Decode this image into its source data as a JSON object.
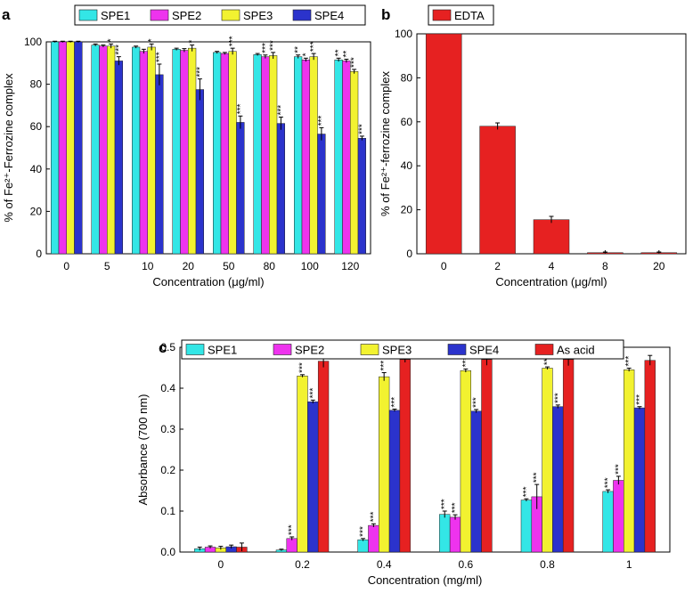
{
  "colors": {
    "SPE1": "#33e6e6",
    "SPE2": "#ee33ee",
    "SPE3": "#f2f230",
    "SPE4": "#2b33cc",
    "As acid": "#e62121",
    "EDTA": "#e62121"
  },
  "chart_data": [
    {
      "panel": "a",
      "type": "bar",
      "title": "",
      "xlabel": "Concentration (μg/ml)",
      "ylabel": "% of Fe²⁺-Ferrozine complex",
      "ylim": [
        0,
        100
      ],
      "yticks": [
        0,
        20,
        40,
        60,
        80,
        100
      ],
      "categories": [
        "0",
        "5",
        "10",
        "20",
        "50",
        "80",
        "100",
        "120"
      ],
      "legend": [
        "SPE1",
        "SPE2",
        "SPE3",
        "SPE4"
      ],
      "legend_position": "top",
      "series": [
        {
          "name": "SPE1",
          "values": [
            100,
            98.5,
            97.5,
            96.5,
            95,
            94,
            93,
            91.5
          ],
          "errors": [
            0.3,
            0.5,
            0.5,
            0.5,
            0.5,
            0.5,
            0.8,
            0.8
          ],
          "sig": [
            "",
            "",
            "",
            "",
            "",
            "",
            "**",
            "**"
          ]
        },
        {
          "name": "SPE2",
          "values": [
            100,
            98,
            95.5,
            96,
            94.5,
            93,
            91.5,
            91
          ],
          "errors": [
            0.3,
            0.5,
            1,
            0.8,
            0.5,
            0.8,
            0.8,
            0.8
          ],
          "sig": [
            "",
            "",
            "",
            "",
            "",
            "***",
            "*",
            "**"
          ]
        },
        {
          "name": "SPE3",
          "values": [
            100,
            98,
            97.5,
            97,
            95.5,
            93.5,
            93,
            86
          ],
          "errors": [
            0.3,
            1,
            1.5,
            1.5,
            1.5,
            1.5,
            1.5,
            1
          ],
          "sig": [
            "",
            "*",
            "*",
            "*",
            "***",
            "***",
            "***",
            "***"
          ]
        },
        {
          "name": "SPE4",
          "values": [
            100,
            91,
            84.5,
            77.5,
            62,
            61.5,
            56.5,
            54.5
          ],
          "errors": [
            0.3,
            2,
            5,
            5,
            3,
            3,
            3,
            1
          ],
          "sig": [
            "",
            "***",
            "***",
            "***",
            "***",
            "***",
            "***",
            "***"
          ]
        }
      ]
    },
    {
      "panel": "b",
      "type": "bar",
      "title": "",
      "xlabel": "Concentration (μg/ml)",
      "ylabel": "% of Fe²⁺-ferrozine complex",
      "ylim": [
        0,
        100
      ],
      "yticks": [
        0,
        20,
        40,
        60,
        80,
        100
      ],
      "categories": [
        "0",
        "2",
        "4",
        "8",
        "20"
      ],
      "legend": [
        "EDTA"
      ],
      "legend_position": "top-left",
      "series": [
        {
          "name": "EDTA",
          "values": [
            100,
            58,
            15.5,
            0.5,
            0.5
          ],
          "errors": [
            0,
            1.5,
            1.5,
            0.3,
            0.3
          ]
        }
      ]
    },
    {
      "panel": "c",
      "type": "bar",
      "title": "",
      "xlabel": "Concentration (mg/ml)",
      "ylabel": "Absorbance (700 nm)",
      "ylim": [
        0,
        0.5
      ],
      "yticks": [
        0,
        0.1,
        0.2,
        0.3,
        0.4,
        0.5
      ],
      "categories": [
        "0",
        "0.2",
        "0.4",
        "0.6",
        "0.8",
        "1"
      ],
      "legend": [
        "SPE1",
        "SPE2",
        "SPE3",
        "SPE4",
        "As acid"
      ],
      "legend_position": "top",
      "series": [
        {
          "name": "SPE1",
          "values": [
            0.008,
            0.005,
            0.03,
            0.092,
            0.127,
            0.148
          ],
          "errors": [
            0.004,
            0.002,
            0.003,
            0.008,
            0.003,
            0.004
          ],
          "sig": [
            "",
            "",
            "***",
            "***",
            "***",
            "***"
          ]
        },
        {
          "name": "SPE2",
          "values": [
            0.012,
            0.033,
            0.065,
            0.085,
            0.135,
            0.175
          ],
          "errors": [
            0.003,
            0.004,
            0.004,
            0.006,
            0.03,
            0.01
          ],
          "sig": [
            "",
            "***",
            "***",
            "***",
            "***",
            "***"
          ]
        },
        {
          "name": "SPE3",
          "values": [
            0.01,
            0.43,
            0.428,
            0.443,
            0.449,
            0.445
          ],
          "errors": [
            0.004,
            0.003,
            0.01,
            0.004,
            0.003,
            0.004
          ],
          "sig": [
            "",
            "***",
            "***",
            "***",
            "***",
            "***"
          ]
        },
        {
          "name": "SPE4",
          "values": [
            0.013,
            0.367,
            0.346,
            0.344,
            0.355,
            0.352
          ],
          "errors": [
            0.004,
            0.004,
            0.003,
            0.004,
            0.004,
            0.003
          ],
          "sig": [
            "",
            "***",
            "***",
            "***",
            "***",
            "***"
          ]
        },
        {
          "name": "As acid",
          "values": [
            0.012,
            0.466,
            0.47,
            0.47,
            0.47,
            0.468
          ],
          "errors": [
            0.01,
            0.015,
            0.007,
            0.014,
            0.015,
            0.012
          ],
          "sig": [
            "",
            "",
            "",
            "",
            "",
            ""
          ]
        }
      ]
    }
  ]
}
